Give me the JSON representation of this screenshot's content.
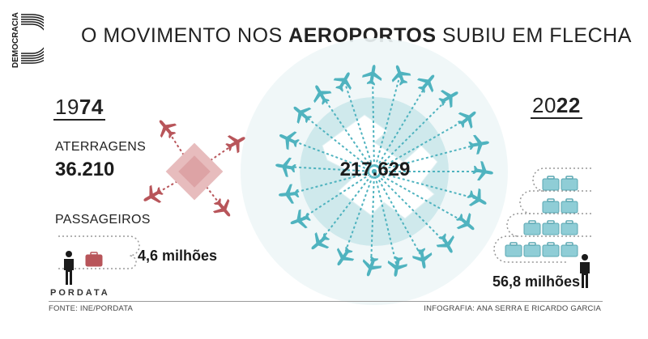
{
  "brand": {
    "logo_text": "DEMOCRACIA",
    "pordata_label": "PORDATA"
  },
  "title": {
    "prefix": "O MOVIMENTO NOS ",
    "highlight": "AEROPORTOS",
    "suffix": " SUBIU EM FLECHA"
  },
  "left": {
    "year_prefix": "19",
    "year_bold": "74",
    "landings_label": "ATERRAGENS",
    "landings_value": "36.210",
    "passengers_label": "PASSAGEIROS",
    "passengers_value": "4,6 milhões"
  },
  "right": {
    "year_prefix": "20",
    "year_bold": "22",
    "landings_value": "217.629",
    "passengers_value": "56,8 milhões"
  },
  "footer": {
    "source": "FONTE: INE/PORDATA",
    "credit": "INFOGRAFIA: ANA SERRA E RICARDO GARCIA"
  },
  "colors": {
    "text": "#1b1b1b",
    "red_accent": "#b8555a",
    "red_light": "#e7bcbd",
    "teal_accent": "#4fb3bf",
    "teal_light": "#cfe9ec",
    "rule": "#999999"
  },
  "icons": {
    "person": "person-icon",
    "luggage": "luggage-icon",
    "plane": "plane-icon"
  }
}
